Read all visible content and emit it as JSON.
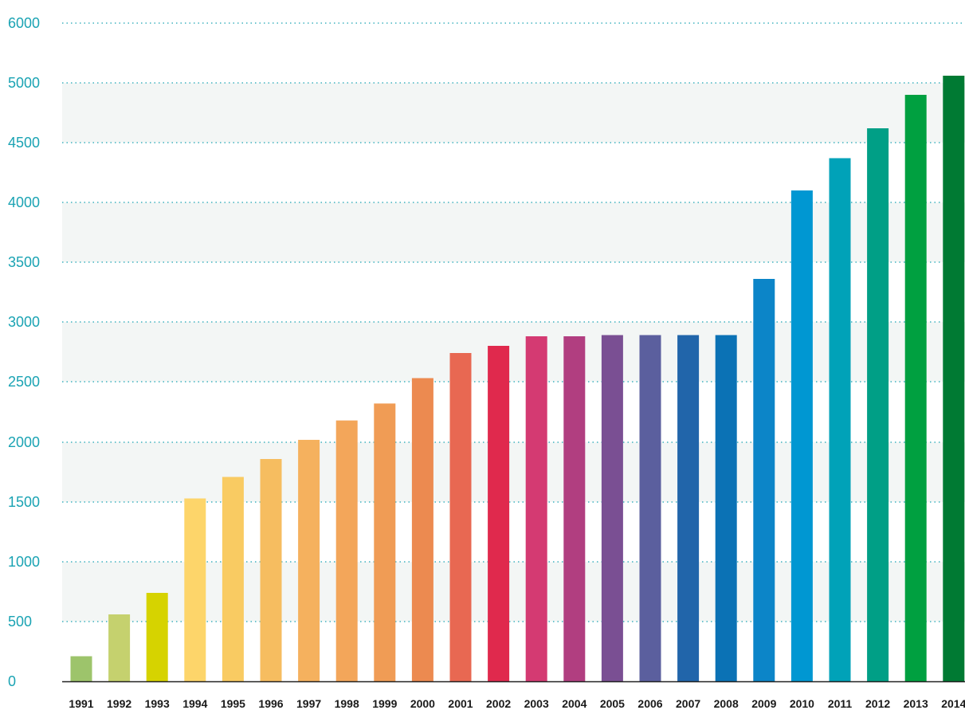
{
  "chart_data": {
    "type": "bar",
    "title": "",
    "xlabel": "",
    "ylabel": "",
    "y_ticks": [
      0,
      500,
      1000,
      1500,
      2000,
      2500,
      3000,
      3500,
      4000,
      4500,
      5000,
      6000
    ],
    "grid": true,
    "categories": [
      "1991",
      "1992",
      "1993",
      "1994",
      "1995",
      "1996",
      "1997",
      "1998",
      "1999",
      "2000",
      "2001",
      "2002",
      "2003",
      "2004",
      "2005",
      "2006",
      "2007",
      "2008",
      "2009",
      "2010",
      "2011",
      "2012",
      "2013",
      "2014"
    ],
    "values": [
      210,
      560,
      740,
      1530,
      1710,
      1860,
      2020,
      2180,
      2320,
      2530,
      2740,
      2800,
      2880,
      2880,
      2890,
      2890,
      2890,
      2890,
      3360,
      4100,
      4370,
      4620,
      4900,
      5120
    ],
    "colors": [
      "#9dc46b",
      "#c5d16e",
      "#d6d300",
      "#fdd56a",
      "#f9cb62",
      "#f6bd60",
      "#f5b15e",
      "#f3a65a",
      "#f09c55",
      "#ec8a50",
      "#e86852",
      "#e0294d",
      "#d43a72",
      "#b13e80",
      "#7a4f93",
      "#5b5f9e",
      "#2165aa",
      "#0b72b5",
      "#0c85c8",
      "#0097d2",
      "#00a2b8",
      "#009f86",
      "#00a040",
      "#007a33"
    ]
  }
}
